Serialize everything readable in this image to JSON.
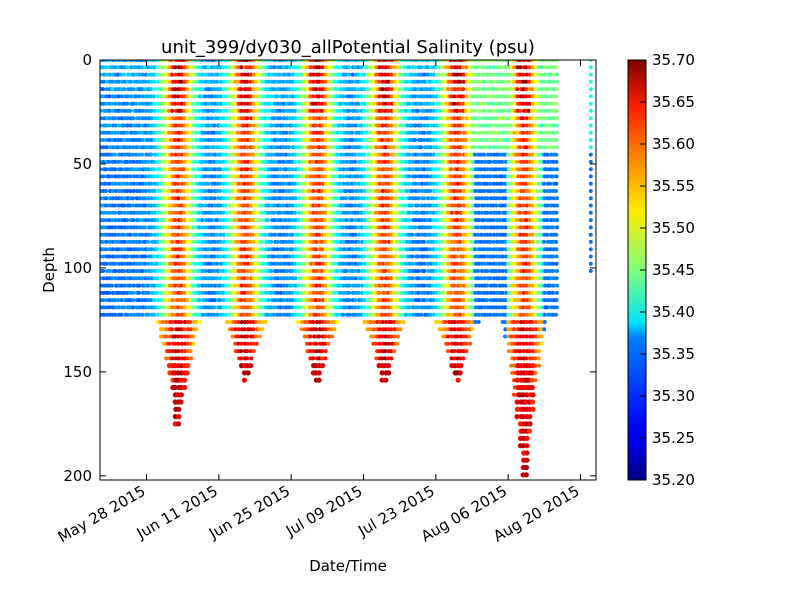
{
  "chart_data": {
    "type": "scatter",
    "title": "unit_399/dy030_allPotential Salinity (psu)",
    "xlabel": "Date/Time",
    "ylabel": "Depth",
    "xlim": [
      "2015-05-19",
      "2015-08-23"
    ],
    "ylim": [
      0,
      202
    ],
    "y_inverted": true,
    "x_ticks": [
      "May 28 2015",
      "Jun 11 2015",
      "Jun 25 2015",
      "Jul 09 2015",
      "Jul 23 2015",
      "Aug 06 2015",
      "Aug 20 2015"
    ],
    "x_tick_dates": [
      "2015-05-28",
      "2015-06-11",
      "2015-06-25",
      "2015-07-09",
      "2015-07-23",
      "2015-08-06",
      "2015-08-20"
    ],
    "y_ticks": [
      0,
      50,
      100,
      150,
      200
    ],
    "colormap": "jet",
    "colorbar": {
      "label": "",
      "range": [
        35.2,
        35.7
      ],
      "ticks": [
        "35.20",
        "35.25",
        "35.30",
        "35.35",
        "35.40",
        "35.45",
        "35.50",
        "35.55",
        "35.60",
        "35.65",
        "35.70"
      ]
    },
    "data_start": "2015-05-19",
    "data_end": "2015-08-16",
    "data_gap": [
      "2015-08-16",
      "2015-08-20"
    ],
    "final_series_date": "2015-08-22",
    "final_series_max_depth": 103,
    "salinity_peaks": [
      {
        "date": "2015-06-03",
        "max_depth": 176
      },
      {
        "date": "2015-06-16",
        "max_depth": 156
      },
      {
        "date": "2015-06-30",
        "max_depth": 158
      },
      {
        "date": "2015-07-13",
        "max_depth": 158
      },
      {
        "date": "2015-07-27",
        "max_depth": 157
      },
      {
        "date": "2015-08-09",
        "max_depth": 202
      }
    ],
    "shallow_profile_depth": 125
  }
}
